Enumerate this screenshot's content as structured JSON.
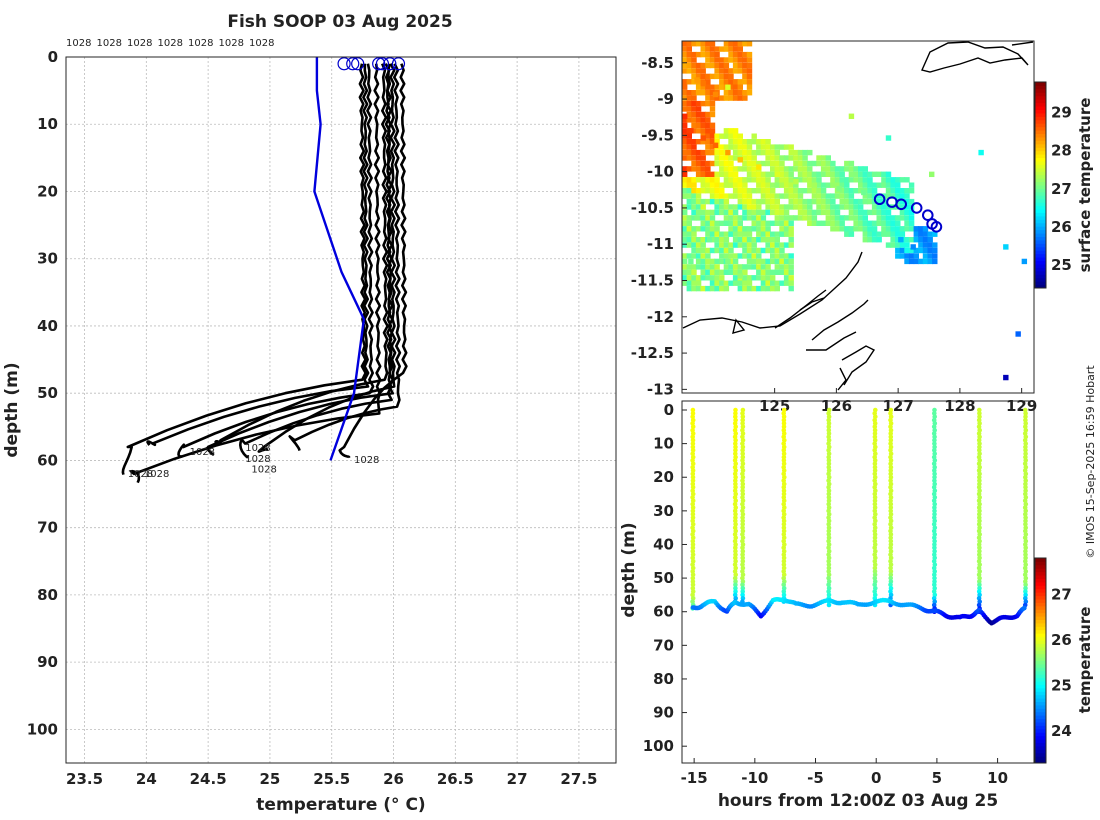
{
  "title": "Fish SOOP 03 Aug 2025",
  "credit": "© IMOS 15-Sep-2025 16:59 Hobart",
  "colors": {
    "profile": "#000000",
    "model": "#0000dd",
    "circle": "#0000cc"
  },
  "chart_data": [
    {
      "id": "profiles",
      "type": "line",
      "title": "Fish SOOP 03 Aug 2025",
      "xlabel": "temperature (° C)",
      "ylabel": "depth (m)",
      "xlim": [
        23.35,
        27.8
      ],
      "ylim": [
        105,
        0
      ],
      "xticks": [
        "23.5",
        "24",
        "24.5",
        "25",
        "25.5",
        "26",
        "26.5",
        "27",
        "27.5"
      ],
      "yticks": [
        "0",
        "10",
        "20",
        "30",
        "40",
        "50",
        "60",
        "70",
        "80",
        "90",
        "100"
      ],
      "grid": true,
      "top_labels": [
        "1028",
        "1028",
        "1028",
        "1028",
        "1028",
        "1028",
        "1028"
      ],
      "profiles": [
        {
          "surf": 25.74,
          "mix": 25.76,
          "td": 48,
          "bot": 23.85,
          "bd": 58,
          "end": 62
        },
        {
          "surf": 25.77,
          "mix": 25.78,
          "td": 49,
          "bot": 24.05,
          "bd": 57.5,
          "end": 58
        },
        {
          "surf": 25.8,
          "mix": 25.82,
          "td": 50,
          "bot": 24.3,
          "bd": 58,
          "end": 59
        },
        {
          "surf": 25.92,
          "mix": 25.94,
          "td": 48,
          "bot": 24.6,
          "bd": 57,
          "end": 58
        },
        {
          "surf": 25.95,
          "mix": 25.97,
          "td": 51,
          "bot": 24.8,
          "bd": 57.5,
          "end": 59
        },
        {
          "surf": 25.99,
          "mix": 26.0,
          "td": 49,
          "bot": 24.95,
          "bd": 58,
          "end": 59
        },
        {
          "surf": 26.02,
          "mix": 26.04,
          "td": 52,
          "bot": 25.2,
          "bd": 57,
          "end": 58
        },
        {
          "surf": 26.07,
          "mix": 26.09,
          "td": 47,
          "bot": 25.6,
          "bd": 58,
          "end": 60
        },
        {
          "surf": 25.86,
          "mix": 25.88,
          "td": 53,
          "bot": 23.9,
          "bd": 62,
          "end": 63
        },
        {
          "surf": 25.96,
          "mix": 25.98,
          "td": 50,
          "bot": 24.5,
          "bd": 58,
          "end": 59
        }
      ],
      "surface_circles": [
        25.6,
        25.67,
        25.71,
        25.88,
        25.91,
        25.97,
        26.04
      ],
      "model": {
        "name": "model profile",
        "points": [
          [
            25.38,
            0
          ],
          [
            25.38,
            5
          ],
          [
            25.41,
            10
          ],
          [
            25.36,
            20
          ],
          [
            25.58,
            32
          ],
          [
            25.76,
            39
          ],
          [
            25.68,
            50
          ],
          [
            25.49,
            60
          ]
        ]
      },
      "bottom_labels": [
        {
          "text": "1028",
          "x": 23.85,
          "y": 62.5
        },
        {
          "text": "1028",
          "x": 23.98,
          "y": 62.5
        },
        {
          "text": "1028",
          "x": 24.35,
          "y": 59.2
        },
        {
          "text": "1028",
          "x": 24.8,
          "y": 58.6
        },
        {
          "text": "1028",
          "x": 24.8,
          "y": 60.2
        },
        {
          "text": "1028",
          "x": 24.85,
          "y": 61.8
        },
        {
          "text": "1028",
          "x": 25.68,
          "y": 60.4
        }
      ]
    },
    {
      "id": "sst_map",
      "type": "heatmap",
      "colorbar_label": "surface temperature",
      "clim": [
        24.4,
        29.8
      ],
      "colorbar_ticks": [
        "25",
        "26",
        "27",
        "28",
        "29"
      ],
      "xlim": [
        123.5,
        129.2
      ],
      "ylim": [
        -13.05,
        -8.2
      ],
      "xticks": [
        "125",
        "126",
        "127",
        "128",
        "129"
      ],
      "yticks": [
        "-8.5",
        "-9",
        "-9.5",
        "-10",
        "-10.5",
        "-11",
        "-11.5",
        "-12",
        "-12.5",
        "-13"
      ],
      "track": [
        [
          126.7,
          -10.38
        ],
        [
          126.9,
          -10.42
        ],
        [
          127.05,
          -10.45
        ],
        [
          127.3,
          -10.5
        ],
        [
          127.48,
          -10.6
        ],
        [
          127.55,
          -10.72
        ],
        [
          127.62,
          -10.76
        ]
      ],
      "cells": [
        [
          123.7,
          -8.7,
          28.3
        ],
        [
          123.8,
          -8.75,
          28.5
        ],
        [
          124.0,
          -8.9,
          28.4
        ],
        [
          124.2,
          -8.8,
          27.6
        ],
        [
          123.5,
          -9.2,
          28.9
        ],
        [
          123.6,
          -9.4,
          28.8
        ],
        [
          123.8,
          -9.5,
          28.7
        ],
        [
          124.0,
          -9.6,
          28.6
        ],
        [
          124.2,
          -9.7,
          28.3
        ],
        [
          124.4,
          -9.8,
          28.1
        ],
        [
          124.7,
          -9.9,
          27.9
        ],
        [
          125.0,
          -10.0,
          27.6
        ],
        [
          125.3,
          -10.1,
          27.4
        ],
        [
          125.6,
          -10.15,
          27.3
        ],
        [
          126.0,
          -10.2,
          27.1
        ],
        [
          126.4,
          -10.25,
          27.0
        ],
        [
          123.5,
          -10.3,
          27.2
        ],
        [
          123.7,
          -10.6,
          27.1
        ],
        [
          123.9,
          -10.9,
          27.0
        ],
        [
          124.2,
          -11.2,
          27.1
        ],
        [
          124.4,
          -11.4,
          27.2
        ],
        [
          123.6,
          -11.2,
          27.0
        ],
        [
          127.0,
          -10.9,
          26.0
        ],
        [
          127.2,
          -11.0,
          25.8
        ],
        [
          126.2,
          -9.2,
          27.4
        ],
        [
          126.8,
          -9.5,
          26.7
        ],
        [
          127.5,
          -10.0,
          27.2
        ],
        [
          128.3,
          -9.7,
          26.5
        ],
        [
          128.7,
          -11.0,
          26.2
        ],
        [
          129.0,
          -11.2,
          25.9
        ],
        [
          128.9,
          -12.2,
          25.6
        ],
        [
          128.7,
          -12.8,
          24.7
        ]
      ]
    },
    {
      "id": "time_section",
      "type": "scatter",
      "xlabel": "hours from 12:00Z 03 Aug 25",
      "ylabel": "depth (m)",
      "colorbar_label": "temperature",
      "clim": [
        23.3,
        27.8
      ],
      "colorbar_ticks": [
        "24",
        "25",
        "26",
        "27"
      ],
      "xlim": [
        -16,
        13
      ],
      "ylim": [
        105,
        0
      ],
      "xticks": [
        "-15",
        "-10",
        "-5",
        "0",
        "5",
        "10"
      ],
      "yticks": [
        "0",
        "10",
        "20",
        "30",
        "40",
        "50",
        "60",
        "70",
        "80",
        "90",
        "100"
      ],
      "casts": [
        {
          "t": -15.1,
          "mix": 26.1,
          "td": 56,
          "bd": 59,
          "bot": 25.3
        },
        {
          "t": -11.6,
          "mix": 26.1,
          "td": 50,
          "bd": 57,
          "bot": 24.5
        },
        {
          "t": -11.0,
          "mix": 26.0,
          "td": 51,
          "bd": 57,
          "bot": 24.6
        },
        {
          "t": -7.6,
          "mix": 26.1,
          "td": 50,
          "bd": 57,
          "bot": 24.8
        },
        {
          "t": -3.9,
          "mix": 25.9,
          "td": 50,
          "bd": 58,
          "bot": 24.9
        },
        {
          "t": -0.1,
          "mix": 26.0,
          "td": 48,
          "bd": 58,
          "bot": 24.9
        },
        {
          "t": 1.2,
          "mix": 26.0,
          "td": 49,
          "bd": 58,
          "bot": 24.3
        },
        {
          "t": 4.8,
          "mix": 25.4,
          "td": 55,
          "bd": 60,
          "bot": 23.8
        },
        {
          "t": 8.5,
          "mix": 25.9,
          "td": 51,
          "bd": 60,
          "bot": 23.8
        },
        {
          "t": 12.3,
          "mix": 25.9,
          "td": 52,
          "bd": 58,
          "bot": 24.2
        }
      ],
      "bottom_trace": [
        [
          -15.1,
          59
        ],
        [
          -14.3,
          58
        ],
        [
          -13.3,
          57
        ],
        [
          -12.3,
          60
        ],
        [
          -11.6,
          57
        ],
        [
          -10.5,
          58
        ],
        [
          -9.5,
          61
        ],
        [
          -8.5,
          57
        ],
        [
          -7.6,
          56
        ],
        [
          -6.6,
          58
        ],
        [
          -5.3,
          58
        ],
        [
          -3.9,
          57
        ],
        [
          -2.8,
          57
        ],
        [
          -1.5,
          58
        ],
        [
          -0.1,
          57
        ],
        [
          1.2,
          57
        ],
        [
          2.5,
          58
        ],
        [
          3.8,
          59
        ],
        [
          4.8,
          60
        ],
        [
          5.8,
          61
        ],
        [
          6.9,
          62
        ],
        [
          7.8,
          61
        ],
        [
          8.5,
          60
        ],
        [
          9.5,
          63
        ],
        [
          10.5,
          62
        ],
        [
          11.6,
          61
        ],
        [
          12.3,
          59
        ]
      ]
    }
  ]
}
